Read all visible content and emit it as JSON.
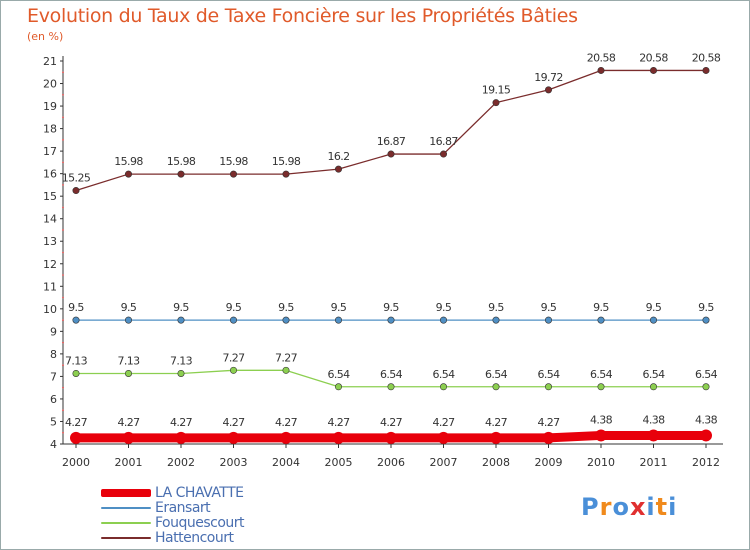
{
  "chart_data": {
    "type": "line",
    "title": "Evolution du Taux de Taxe Foncière sur les Propriétés Bâties",
    "unit_label": "(en %)",
    "xlabel": "",
    "ylabel": "",
    "x": [
      "2000",
      "2001",
      "2002",
      "2003",
      "2004",
      "2005",
      "2006",
      "2007",
      "2008",
      "2009",
      "2010",
      "2011",
      "2012"
    ],
    "ylim": [
      4,
      21
    ],
    "yticks": [
      4,
      5,
      6,
      7,
      8,
      9,
      10,
      11,
      12,
      13,
      14,
      15,
      16,
      17,
      18,
      19,
      20,
      21
    ],
    "series": [
      {
        "name": "LA CHAVATTE",
        "color": "#e8000b",
        "values": [
          4.27,
          4.27,
          4.27,
          4.27,
          4.27,
          4.27,
          4.27,
          4.27,
          4.27,
          4.27,
          4.38,
          4.38,
          4.38
        ],
        "labels": [
          "4.27",
          "4.27",
          "4.27",
          "4.27",
          "4.27",
          "4.27",
          "4.27",
          "4.27",
          "4.27",
          "4.27",
          "4.38",
          "4.38",
          "4.38"
        ]
      },
      {
        "name": "Eransart",
        "color": "#4f8fc4",
        "values": [
          9.5,
          9.5,
          9.5,
          9.5,
          9.5,
          9.5,
          9.5,
          9.5,
          9.5,
          9.5,
          9.5,
          9.5,
          9.5
        ],
        "labels": [
          "9.5",
          "9.5",
          "9.5",
          "9.5",
          "9.5",
          "9.5",
          "9.5",
          "9.5",
          "9.5",
          "9.5",
          "9.5",
          "9.5",
          "9.5"
        ]
      },
      {
        "name": "Fouquescourt",
        "color": "#8ccf50",
        "values": [
          7.13,
          7.13,
          7.13,
          7.27,
          7.27,
          6.54,
          6.54,
          6.54,
          6.54,
          6.54,
          6.54,
          6.54,
          6.54
        ],
        "labels": [
          "7.13",
          "7.13",
          "7.13",
          "7.27",
          "7.27",
          "6.54",
          "6.54",
          "6.54",
          "6.54",
          "6.54",
          "6.54",
          "6.54",
          "6.54"
        ]
      },
      {
        "name": "Hattencourt",
        "color": "#7a2c2c",
        "values": [
          15.25,
          15.98,
          15.98,
          15.98,
          15.98,
          16.2,
          16.87,
          16.87,
          19.15,
          19.72,
          20.58,
          20.58,
          20.58
        ],
        "labels": [
          "15.25",
          "15.98",
          "15.98",
          "15.98",
          "15.98",
          "16.2",
          "16.87",
          "16.87",
          "19.15",
          "19.72",
          "20.58",
          "20.58",
          "20.58"
        ]
      }
    ],
    "legend_position": "bottom-left",
    "grid": false
  },
  "logo": {
    "text": "Proxiti",
    "letters": [
      "P",
      "r",
      "o",
      "x",
      "i",
      "t",
      "i"
    ],
    "colors": [
      "#4a8fd8",
      "#f08a1c",
      "#4a8fd8",
      "#e03030",
      "#4a8fd8",
      "#f08a1c",
      "#4a8fd8"
    ]
  }
}
